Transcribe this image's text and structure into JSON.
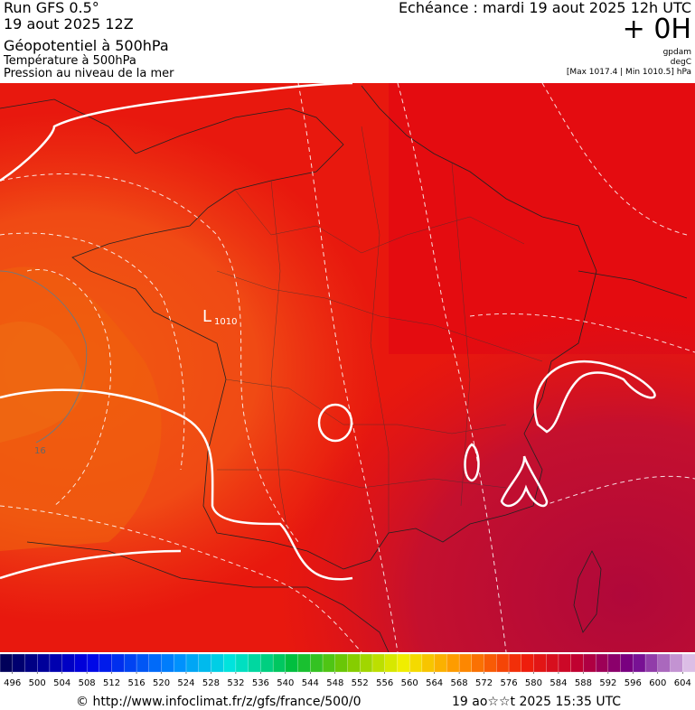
{
  "header": {
    "run": "Run GFS 0.5°",
    "date": "19 aout 2025 12Z",
    "field1": "Géopotentiel à 500hPa",
    "field2": "Température à 500hPa",
    "field3": "Pression au niveau de la mer",
    "forecast": "Echéance : mardi 19 aout 2025 12h UTC",
    "lead": "+ 0H",
    "unit1": "gpdam",
    "unit2": "degC",
    "extremes": "[Max 1017.4 | Min 1010.5] hPa"
  },
  "map": {
    "low_symbol": "L",
    "low_value": "1010",
    "isotherm_label": "16"
  },
  "colorbar": {
    "ticks": [
      496,
      500,
      504,
      508,
      512,
      516,
      520,
      524,
      528,
      532,
      536,
      540,
      544,
      548,
      552,
      556,
      560,
      564,
      568,
      572,
      576,
      580,
      584,
      588,
      592,
      596,
      600,
      604
    ]
  },
  "footer": {
    "source": "© http://www.infoclimat.fr/z/gfs/france/500/0",
    "timestamp": "19 ao☆☆t 2025 15:35 UTC"
  }
}
